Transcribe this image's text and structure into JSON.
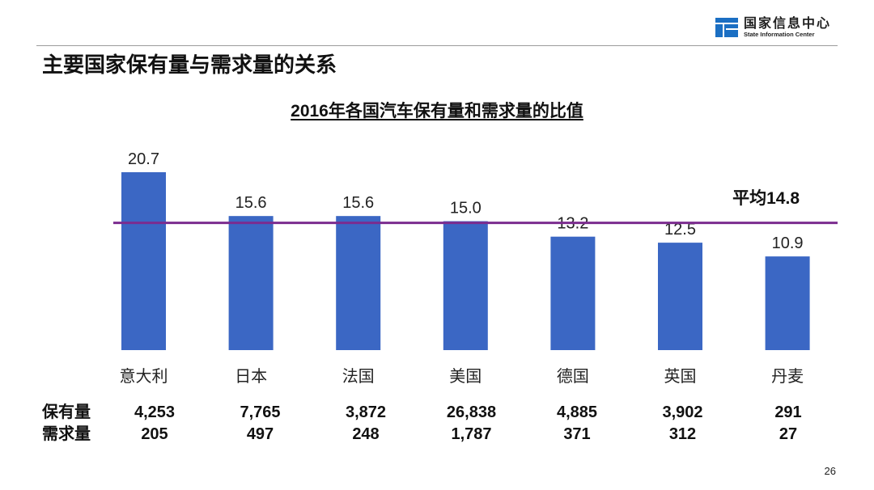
{
  "header": {
    "org_name_cn": "国家信息中心",
    "org_name_en": "State Information Center",
    "logo_icon": "sic-logo-icon",
    "brand_color": "#1b6fc3"
  },
  "slide": {
    "title": "主要国家保有量与需求量的关系",
    "page_number": "26"
  },
  "chart_data": {
    "type": "bar",
    "title": "2016年各国汽车保有量和需求量的比值",
    "xlabel": "",
    "ylabel": "",
    "categories": [
      "意大利",
      "日本",
      "法国",
      "美国",
      "德国",
      "英国",
      "丹麦"
    ],
    "values": [
      20.7,
      15.6,
      15.6,
      15.0,
      13.2,
      12.5,
      10.9
    ],
    "value_labels": [
      "20.7",
      "15.6",
      "15.6",
      "15.0",
      "13.2",
      "12.5",
      "10.9"
    ],
    "bar_color": "#3b67c4",
    "grid": false,
    "reference_line": {
      "value": 14.8,
      "label": "平均14.8",
      "color": "#7b2c8f"
    }
  },
  "table": {
    "rows": [
      {
        "label": "保有量",
        "values": [
          "4,253",
          "7,765",
          "3,872",
          "26,838",
          "4,885",
          "3,902",
          "291"
        ]
      },
      {
        "label": "需求量",
        "values": [
          "205",
          "497",
          "248",
          "1,787",
          "371",
          "312",
          "27"
        ]
      }
    ]
  }
}
